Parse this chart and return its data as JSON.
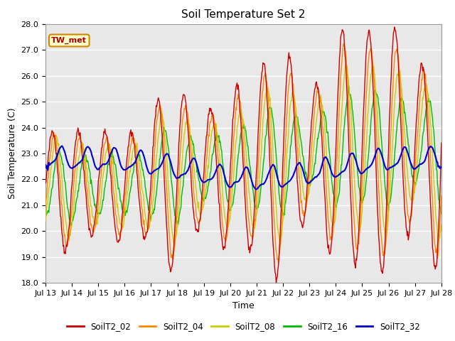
{
  "title": "Soil Temperature Set 2",
  "xlabel": "Time",
  "ylabel": "Soil Temperature (C)",
  "ylim": [
    18.0,
    28.0
  ],
  "yticks": [
    18.0,
    19.0,
    20.0,
    21.0,
    22.0,
    23.0,
    24.0,
    25.0,
    26.0,
    27.0,
    28.0
  ],
  "xtick_labels": [
    "Jul 13",
    "Jul 14",
    "Jul 15",
    "Jul 16",
    "Jul 17",
    "Jul 18",
    "Jul 19",
    "Jul 20",
    "Jul 21",
    "Jul 22",
    "Jul 23",
    "Jul 24",
    "Jul 25",
    "Jul 26",
    "Jul 27",
    "Jul 28"
  ],
  "annotation": "TW_met",
  "series_names": [
    "SoilT2_02",
    "SoilT2_04",
    "SoilT2_08",
    "SoilT2_16",
    "SoilT2_32"
  ],
  "series_colors": [
    "#cc0000",
    "#ff8800",
    "#cccc00",
    "#00bb00",
    "#0000cc"
  ],
  "line_width": 1.0,
  "background_color": "#e8e8e8",
  "outer_bg": "#ffffff",
  "title_fontsize": 11,
  "axis_fontsize": 9,
  "tick_fontsize": 8
}
